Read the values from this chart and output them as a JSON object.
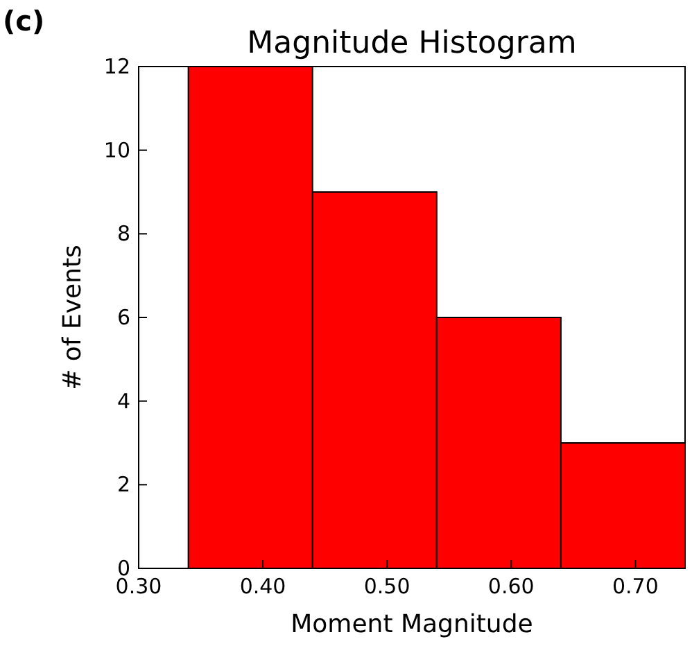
{
  "chart_data": {
    "type": "histogram",
    "title": "Magnitude Histogram",
    "xlabel": "Moment Magnitude",
    "ylabel": "# of Events",
    "annotations": [
      "(c)"
    ],
    "bins": [
      0.34,
      0.44,
      0.54,
      0.64,
      0.74
    ],
    "values": [
      12,
      9,
      6,
      3
    ],
    "color": "#ff0000",
    "xlim": [
      0.3,
      0.74
    ],
    "xticks": [
      {
        "value": 0.3,
        "label": "0.30"
      },
      {
        "value": 0.4,
        "label": "0.40"
      },
      {
        "value": 0.5,
        "label": "0.50"
      },
      {
        "value": 0.6,
        "label": "0.60"
      },
      {
        "value": 0.7,
        "label": "0.70"
      }
    ],
    "ylim": [
      0,
      12
    ],
    "yticks": [
      0,
      2,
      4,
      6,
      8,
      10,
      12
    ],
    "grid": false
  }
}
